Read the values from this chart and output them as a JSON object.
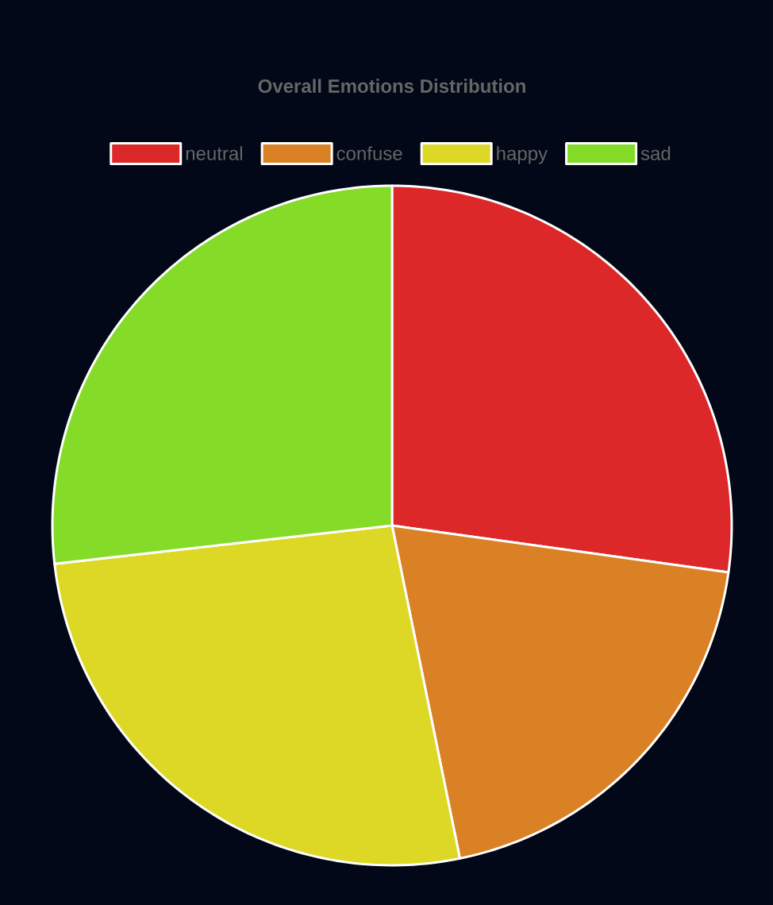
{
  "chart_data": {
    "type": "pie",
    "title": "Overall Emotions Distribution",
    "categories": [
      "neutral",
      "confuse",
      "happy",
      "sad"
    ],
    "values": [
      27.2,
      19.6,
      26.4,
      26.8
    ],
    "colors": [
      "#dc2828",
      "#db8125",
      "#dcd825",
      "#84db28"
    ],
    "legend": "top"
  }
}
